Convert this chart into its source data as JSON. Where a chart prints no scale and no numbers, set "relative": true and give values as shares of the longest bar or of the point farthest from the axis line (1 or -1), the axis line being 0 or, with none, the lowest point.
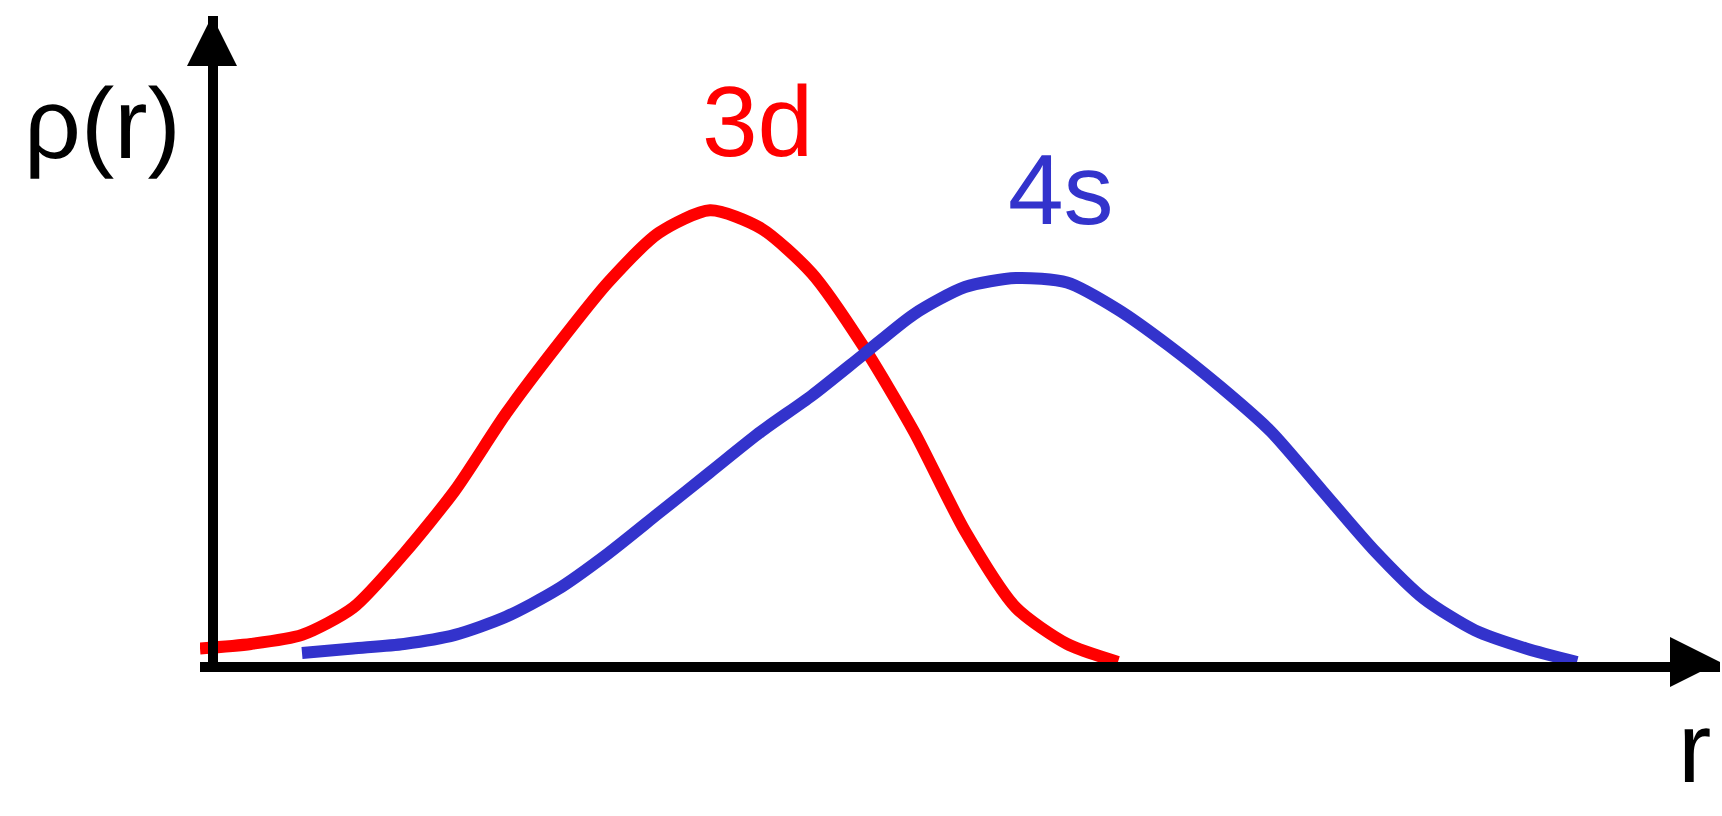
{
  "chart_data": {
    "type": "line",
    "relative": true,
    "xlabel": "r",
    "ylabel": "ρ(r)",
    "marker": "none",
    "line_style": "solid",
    "categories": [
      null,
      null,
      null,
      null,
      null,
      null,
      null,
      null,
      null,
      null,
      null,
      null,
      null,
      null,
      null,
      null,
      null,
      null,
      null,
      null,
      null,
      null,
      null,
      null,
      null,
      null,
      null,
      null
    ],
    "series": [
      {
        "name": "3d",
        "color": "#ff0000",
        "values": [
          0.03,
          0.04,
          0.06,
          0.12,
          0.24,
          0.38,
          0.55,
          0.7,
          0.84,
          0.95,
          1.0,
          0.96,
          0.86,
          0.7,
          0.51,
          0.29,
          0.12,
          0.04,
          0.0,
          null,
          null,
          null,
          null,
          null,
          null,
          null,
          null,
          null
        ]
      },
      {
        "name": "4s",
        "color": "#3333cc",
        "values": [
          null,
          null,
          0.02,
          0.03,
          0.04,
          0.06,
          0.1,
          0.16,
          0.24,
          0.33,
          0.42,
          0.51,
          0.59,
          0.68,
          0.77,
          0.83,
          0.85,
          0.84,
          0.78,
          0.7,
          0.61,
          0.51,
          0.38,
          0.25,
          0.14,
          0.07,
          0.03,
          0.0
        ]
      }
    ]
  }
}
